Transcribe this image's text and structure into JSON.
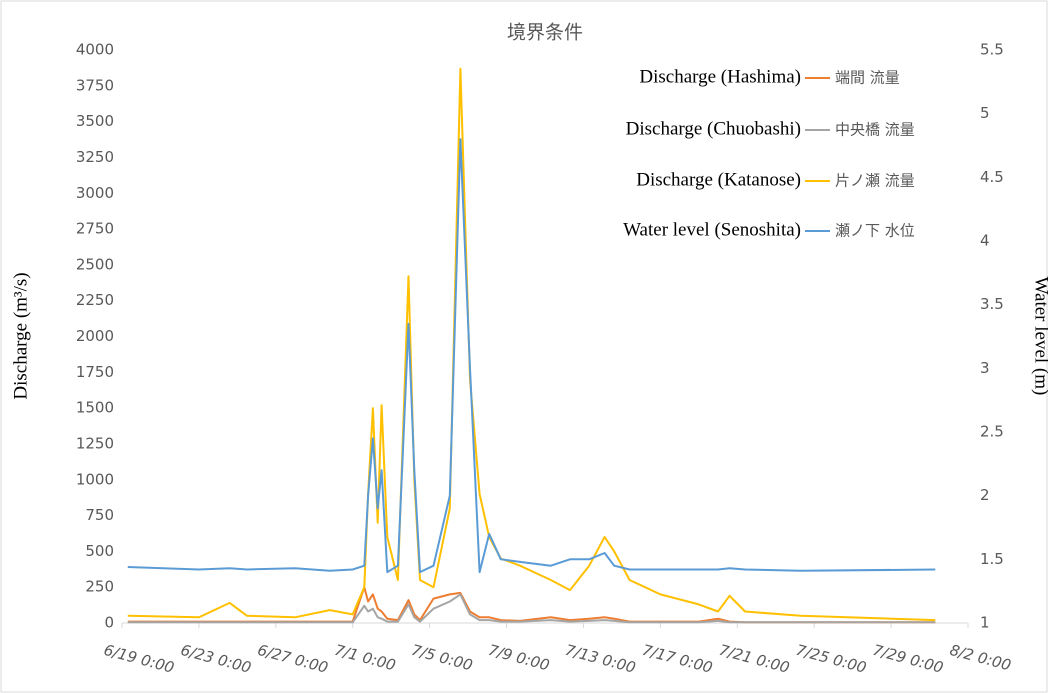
{
  "chart_data": {
    "type": "line",
    "title": "境界条件",
    "y_label": "Discharge (m³/s)",
    "y2_label": "Water level (m)",
    "x": [
      0.3,
      4,
      5.6,
      6.5,
      9,
      10.8,
      12,
      12.6,
      12.8,
      13.05,
      13.3,
      13.5,
      13.8,
      14.35,
      14.9,
      15.2,
      15.5,
      16.2,
      17.05,
      17.6,
      18.1,
      18.6,
      19.1,
      19.7,
      20.7,
      22.3,
      23.3,
      24.3,
      25.1,
      25.6,
      26.4,
      28,
      30,
      31,
      31.6,
      32.4,
      35.3,
      42.3
    ],
    "xlim": [
      0,
      44
    ],
    "xticks": [
      {
        "value": 0,
        "label": "6/19 0:00"
      },
      {
        "value": 4,
        "label": "6/23 0:00"
      },
      {
        "value": 8,
        "label": "6/27 0:00"
      },
      {
        "value": 12,
        "label": "7/1 0:00"
      },
      {
        "value": 16,
        "label": "7/5 0:00"
      },
      {
        "value": 20,
        "label": "7/9 0:00"
      },
      {
        "value": 24,
        "label": "7/13 0:00"
      },
      {
        "value": 28,
        "label": "7/17 0:00"
      },
      {
        "value": 32,
        "label": "7/21 0:00"
      },
      {
        "value": 36,
        "label": "7/25 0:00"
      },
      {
        "value": 40,
        "label": "7/29 0:00"
      },
      {
        "value": 44,
        "label": "8/2 0:00"
      }
    ],
    "ylim": [
      0,
      4000
    ],
    "yticks": [
      0,
      250,
      500,
      750,
      1000,
      1250,
      1500,
      1750,
      2000,
      2250,
      2500,
      2750,
      3000,
      3250,
      3500,
      3750,
      4000
    ],
    "y2lim": [
      1,
      5.5
    ],
    "y2ticks": [
      1,
      1.5,
      2,
      2.5,
      3,
      3.5,
      4,
      4.5,
      5,
      5.5
    ],
    "legend": "top-right",
    "series": [
      {
        "name": "端間  流量",
        "annotation": "Discharge (Hashima)",
        "color": "#ed7d31",
        "values": [
          10,
          10,
          10,
          10,
          10,
          10,
          10,
          250,
          150,
          200,
          100,
          80,
          30,
          20,
          160,
          60,
          20,
          170,
          200,
          210,
          80,
          40,
          40,
          20,
          15,
          40,
          20,
          30,
          40,
          30,
          10,
          10,
          10,
          30,
          10,
          5,
          5,
          5
        ]
      },
      {
        "name": "中央橋  流量",
        "annotation": "Discharge (Chuobashi)",
        "color": "#a5a5a5",
        "values": [
          5,
          5,
          5,
          5,
          5,
          5,
          5,
          120,
          80,
          100,
          40,
          30,
          10,
          10,
          130,
          40,
          10,
          100,
          150,
          200,
          60,
          20,
          20,
          10,
          10,
          20,
          10,
          15,
          20,
          15,
          5,
          5,
          5,
          15,
          5,
          5,
          5,
          5
        ]
      },
      {
        "name": "片ノ瀬  流量",
        "annotation": "Discharge (Katanose)",
        "color": "#ffc000",
        "values": [
          50,
          40,
          140,
          50,
          40,
          90,
          60,
          250,
          900,
          1500,
          700,
          1520,
          600,
          300,
          2420,
          1000,
          300,
          250,
          800,
          3870,
          1700,
          900,
          600,
          450,
          400,
          300,
          230,
          400,
          600,
          500,
          300,
          200,
          130,
          80,
          190,
          80,
          50,
          20
        ]
      },
      {
        "name": "瀬ノ下  水位",
        "annotation": "Water level (Senoshita)",
        "color": "#5b9bd5",
        "axis": "y2",
        "values": [
          1.44,
          1.42,
          1.43,
          1.42,
          1.43,
          1.41,
          1.42,
          1.45,
          2.0,
          2.45,
          1.9,
          2.2,
          1.4,
          1.45,
          3.35,
          2.2,
          1.4,
          1.45,
          2.0,
          4.8,
          3.0,
          1.4,
          1.7,
          1.5,
          1.48,
          1.45,
          1.5,
          1.5,
          1.55,
          1.45,
          1.42,
          1.42,
          1.42,
          1.42,
          1.43,
          1.42,
          1.41,
          1.42
        ]
      }
    ]
  }
}
